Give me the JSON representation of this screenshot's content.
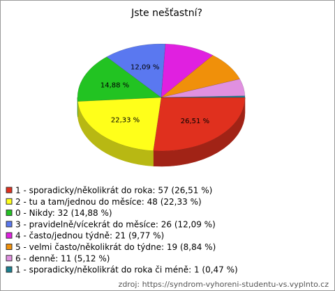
{
  "chart_data": {
    "type": "pie3d",
    "title": "Jste nešťastní?",
    "categories": [
      "1 - sporadicky/několikrát do roka: 57 (26,51 %)",
      "2 - tu a tam/jednou do měsíce: 48 (22,33 %)",
      "0 - Nikdy: 32 (14,88 %)",
      "3 - pravidelně/vícekrát do měsíce: 26 (12,09 %)",
      "4 - často/jednou týdně: 21 (9,77 %)",
      "5 - velmi často/několikrát do týdne: 19 (8,84 %)",
      "6 - denně: 11 (5,12 %)",
      "1 - sporadicky/několikrát do roka či méně: 1 (0,47 %)"
    ],
    "values": [
      26.51,
      22.33,
      14.88,
      12.09,
      9.77,
      8.84,
      5.12,
      0.47
    ],
    "value_labels": [
      "26,51 %",
      "22,33 %",
      "14,88 %",
      "12,09 %",
      null,
      null,
      null,
      null
    ],
    "colors": [
      "#e0301e",
      "#ffff1a",
      "#22c322",
      "#5a78f0",
      "#e020e0",
      "#f0900a",
      "#e090e0",
      "#1a8090"
    ],
    "source": "zdroj: https://syndrom-vyhoreni-studentu-vs.vyplnto.cz"
  }
}
